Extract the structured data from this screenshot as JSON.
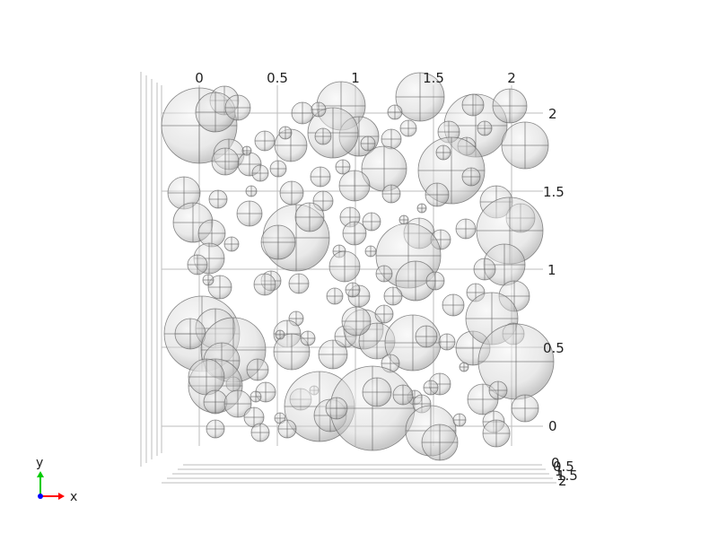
{
  "x_tick_labels": [
    "0",
    "0.5",
    "1",
    "1.5",
    "2"
  ],
  "y_tick_labels": [
    "0",
    "0.5",
    "1",
    "1.5",
    "2"
  ],
  "z_tick_labels": [
    "0",
    "0.5",
    "1",
    "1.5",
    "2"
  ],
  "triad": {
    "x_label": "x",
    "y_label": "y",
    "x_color": "#ff0000",
    "y_color": "#00cc00",
    "z_color": "#0000ff"
  },
  "sphere_style": {
    "fill": "#cfcfcf",
    "stroke": "#6a6a6a",
    "highlight": "#f4f4f4"
  }
}
